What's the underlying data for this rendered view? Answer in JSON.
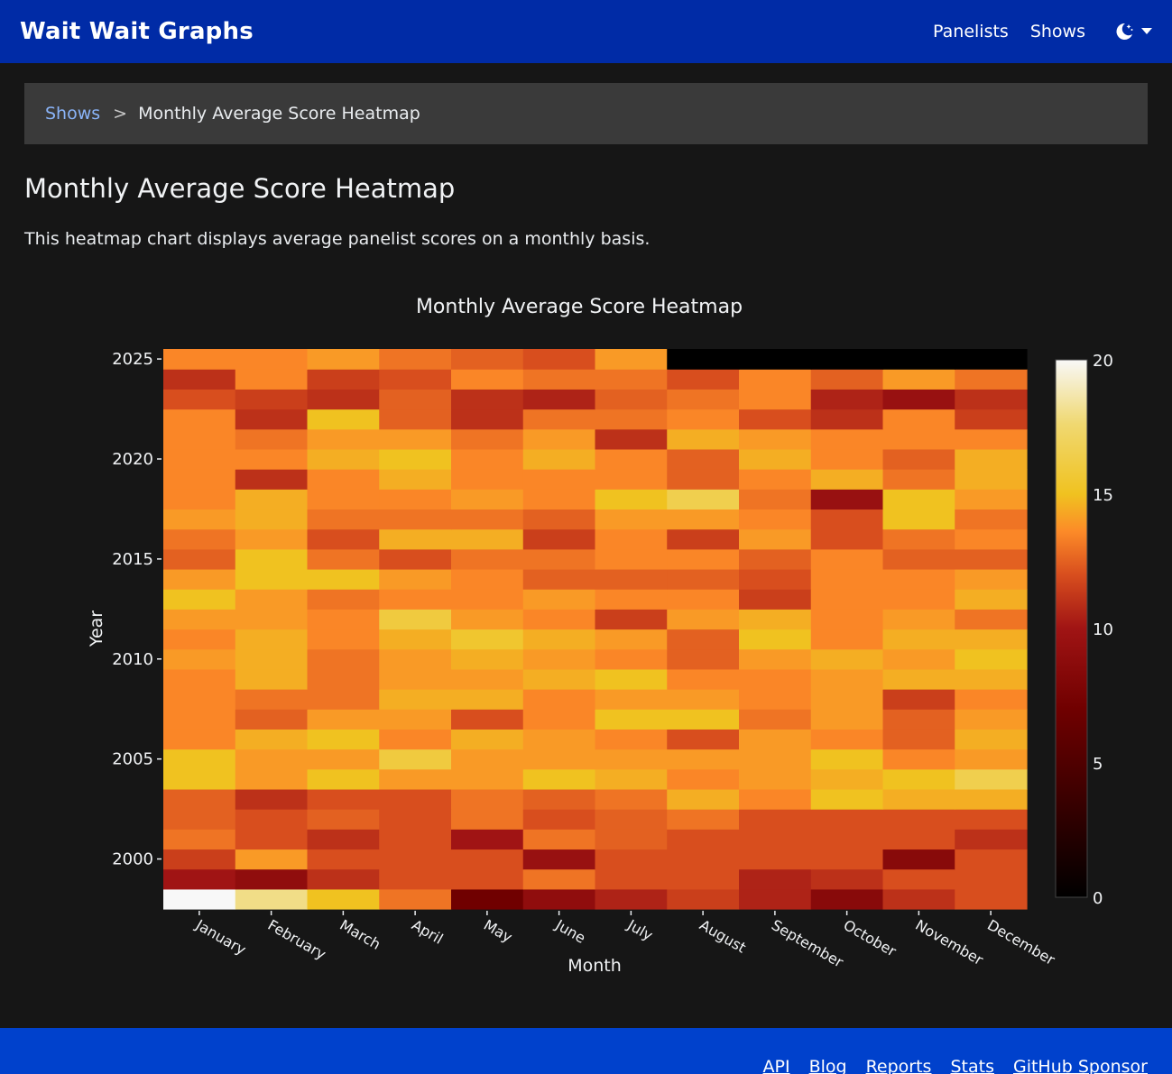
{
  "navbar": {
    "brand": "Wait Wait Graphs",
    "links": [
      "Panelists",
      "Shows"
    ],
    "theme_icon": "moon-stars-icon",
    "theme_dropdown_icon": "caret-down-icon"
  },
  "breadcrumb": {
    "parent": "Shows",
    "separator": ">",
    "current": "Monthly Average Score Heatmap"
  },
  "page": {
    "title": "Monthly Average Score Heatmap",
    "description": "This heatmap chart displays average panelist scores on a monthly basis."
  },
  "chart_data": {
    "type": "heatmap",
    "title": "Monthly Average Score Heatmap",
    "xlabel": "Month",
    "ylabel": "Year",
    "x": [
      "January",
      "February",
      "March",
      "April",
      "May",
      "June",
      "July",
      "August",
      "September",
      "October",
      "November",
      "December"
    ],
    "y": [
      1998,
      1999,
      2000,
      2001,
      2002,
      2003,
      2004,
      2005,
      2006,
      2007,
      2008,
      2009,
      2010,
      2011,
      2012,
      2013,
      2014,
      2015,
      2016,
      2017,
      2018,
      2019,
      2020,
      2021,
      2022,
      2023,
      2024,
      2025
    ],
    "y_ticks": [
      2000,
      2005,
      2010,
      2015,
      2020,
      2025
    ],
    "colorscale": "hot",
    "colorbar": {
      "min": 0,
      "max": 20,
      "ticks": [
        0,
        5,
        10,
        15,
        20
      ]
    },
    "z": [
      [
        20,
        18,
        15,
        13,
        7,
        9,
        10.5,
        11.5,
        10.5,
        8.5,
        11,
        12
      ],
      [
        10,
        9,
        11,
        12,
        12,
        13,
        12,
        12,
        10.5,
        11,
        12,
        12
      ],
      [
        11.5,
        14,
        12,
        12,
        12,
        9.5,
        12,
        12,
        12,
        12,
        8.5,
        12
      ],
      [
        13,
        12,
        11,
        12,
        10,
        13,
        12.5,
        12,
        12,
        12,
        12,
        11
      ],
      [
        12.5,
        12,
        12.5,
        12,
        13,
        12,
        12.5,
        13,
        12,
        12,
        12,
        12
      ],
      [
        12.5,
        11,
        12,
        12,
        13,
        12.5,
        13,
        14.5,
        13.5,
        15,
        14.5,
        14.5
      ],
      [
        15,
        14,
        15,
        14,
        14,
        15,
        14.5,
        13.5,
        14,
        14.5,
        15,
        16.5
      ],
      [
        15,
        14,
        14,
        16,
        14,
        14,
        14,
        14,
        14,
        15,
        13.5,
        14
      ],
      [
        13.5,
        14.5,
        15,
        13.5,
        14.5,
        14,
        13.5,
        12,
        14,
        13.5,
        12.5,
        14.5
      ],
      [
        13.5,
        12.5,
        14,
        14,
        12,
        13.5,
        15,
        15,
        13,
        14,
        12.5,
        14
      ],
      [
        13.5,
        13,
        13,
        14.5,
        14.5,
        13.5,
        14,
        14,
        13.5,
        14,
        11.5,
        13.5
      ],
      [
        13.5,
        14.5,
        13,
        14,
        14,
        14.5,
        15,
        13.5,
        13.5,
        14,
        14.5,
        14.5
      ],
      [
        14,
        14.5,
        13,
        14,
        14.5,
        14,
        13.5,
        12.5,
        14,
        14.5,
        14,
        15
      ],
      [
        13.5,
        14.5,
        13.5,
        14.5,
        15.5,
        14.5,
        14,
        12.5,
        15,
        13.5,
        14.5,
        14.5
      ],
      [
        14,
        14,
        13.5,
        16,
        14,
        13.5,
        11.5,
        14,
        14.5,
        13.5,
        14,
        13
      ],
      [
        15,
        14,
        13,
        13.5,
        13.5,
        14,
        13.5,
        13.5,
        11.5,
        13.5,
        13.5,
        14.5
      ],
      [
        14,
        15,
        15,
        14,
        13.5,
        12.5,
        12.5,
        12.5,
        12,
        13.5,
        13.5,
        14
      ],
      [
        12.5,
        15,
        13,
        12,
        13,
        13,
        13.5,
        13.5,
        12.5,
        13.5,
        12.5,
        12.5
      ],
      [
        13,
        14,
        12,
        14.5,
        14.5,
        11.5,
        13.5,
        11.5,
        14,
        12,
        13,
        13.5
      ],
      [
        14,
        14.5,
        13,
        13,
        13,
        12.5,
        14,
        14,
        13.5,
        12,
        15,
        13
      ],
      [
        13.5,
        14.5,
        13.5,
        13.5,
        14,
        13.5,
        15,
        16.5,
        13,
        9.5,
        15,
        14
      ],
      [
        13.5,
        11,
        13.5,
        14.5,
        13.5,
        13.5,
        13.5,
        12.5,
        13.5,
        14.5,
        13,
        14.5
      ],
      [
        13.5,
        13.5,
        14.5,
        15,
        13.5,
        14.5,
        13.5,
        12.5,
        14.5,
        13.5,
        12.5,
        14.5
      ],
      [
        13.5,
        13,
        14,
        14,
        13,
        14,
        11,
        14.5,
        14,
        13.5,
        13.5,
        13.5
      ],
      [
        13.5,
        11,
        15,
        12.5,
        11,
        13,
        13,
        13.5,
        12,
        11,
        13.5,
        11.5
      ],
      [
        12,
        11.5,
        11,
        12.5,
        11,
        10.5,
        12.5,
        13,
        13.5,
        10.5,
        9.5,
        11
      ],
      [
        11,
        13.5,
        11.5,
        12,
        13.5,
        13,
        13,
        12,
        13.5,
        12.5,
        14,
        13
      ],
      [
        13.5,
        13.5,
        14,
        13,
        12.5,
        12,
        14,
        0,
        0,
        0,
        0,
        0
      ]
    ]
  },
  "footer": {
    "links": [
      "API",
      "Blog",
      "Reports",
      "Stats",
      "GitHub Sponsor"
    ]
  }
}
